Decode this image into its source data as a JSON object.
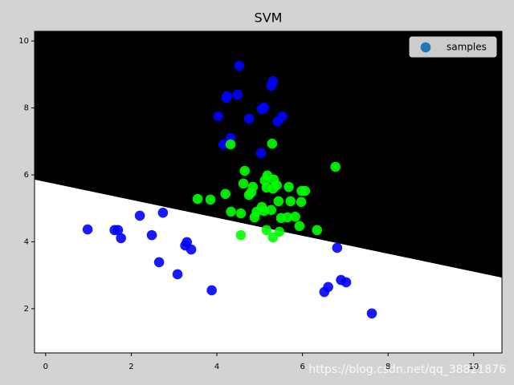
{
  "chart_data": {
    "type": "scatter",
    "title": "SVM",
    "xlim": [
      -0.26,
      10.66
    ],
    "ylim": [
      0.68,
      10.29
    ],
    "xticks": [
      0,
      2,
      4,
      6,
      8,
      10
    ],
    "yticks": [
      2,
      4,
      6,
      8,
      10
    ],
    "boundary": {
      "x": [
        -0.26,
        10.66
      ],
      "y": [
        5.86,
        2.93
      ],
      "above_color": "#000000",
      "below_color": "#ffffff"
    },
    "legend_position": "upper right",
    "class_colors": [
      "#0000ff",
      "#00ff00"
    ],
    "series": [
      {
        "name": "samples",
        "color": "#1f77b4",
        "x": [
          4.52,
          5.31,
          5.27,
          4.24,
          4.48,
          4.22,
          5.1,
          5.05,
          4.03,
          4.75,
          5.53,
          5.42,
          4.32,
          4.15,
          5.03,
          0.98,
          1.61,
          1.69,
          1.76,
          2.2,
          2.48,
          2.74,
          2.65,
          3.26,
          3.3,
          3.4,
          3.08,
          3.88,
          6.81,
          6.6,
          6.51,
          6.9,
          7.02,
          7.62,
          4.32,
          5.29,
          6.77,
          4.65,
          5.18,
          5.33,
          5.12,
          4.62,
          4.84,
          5.16,
          5.4,
          5.31,
          5.68,
          5.98,
          6.06,
          3.55,
          3.85,
          4.2,
          4.8,
          4.75,
          5.44,
          5.72,
          5.97,
          5.05,
          5.1,
          4.93,
          5.27,
          4.33,
          4.56,
          4.88,
          5.5,
          5.65,
          5.83,
          5.93,
          5.16,
          6.34,
          5.46,
          5.31,
          4.56
        ],
        "values": [
          9.26,
          8.8,
          8.66,
          8.35,
          8.4,
          8.3,
          8.01,
          7.96,
          7.75,
          7.68,
          7.75,
          7.6,
          7.1,
          6.91,
          6.65,
          4.37,
          4.35,
          4.35,
          4.11,
          4.78,
          4.2,
          4.87,
          3.39,
          3.89,
          3.99,
          3.77,
          3.03,
          2.55,
          3.82,
          2.65,
          2.5,
          2.86,
          2.79,
          1.86,
          6.91,
          6.93,
          6.24,
          6.12,
          5.98,
          5.86,
          5.83,
          5.74,
          5.64,
          5.62,
          5.69,
          5.59,
          5.64,
          5.52,
          5.52,
          5.28,
          5.26,
          5.43,
          5.47,
          5.4,
          5.21,
          5.21,
          5.19,
          5.04,
          4.92,
          4.9,
          4.95,
          4.9,
          4.85,
          4.73,
          4.71,
          4.73,
          4.75,
          4.47,
          4.35,
          4.35,
          4.3,
          4.13,
          4.2
        ],
        "classes": [
          0,
          0,
          0,
          0,
          0,
          0,
          0,
          0,
          0,
          0,
          0,
          0,
          0,
          0,
          0,
          0,
          0,
          0,
          0,
          0,
          0,
          0,
          0,
          0,
          0,
          0,
          0,
          0,
          0,
          0,
          0,
          0,
          0,
          0,
          1,
          1,
          1,
          1,
          1,
          1,
          1,
          1,
          1,
          1,
          1,
          1,
          1,
          1,
          1,
          1,
          1,
          1,
          1,
          1,
          1,
          1,
          1,
          1,
          1,
          1,
          1,
          1,
          1,
          1,
          1,
          1,
          1,
          1,
          1,
          1,
          1,
          1,
          1
        ]
      }
    ],
    "watermark": "https://blog.csdn.net/qq_38821876"
  }
}
